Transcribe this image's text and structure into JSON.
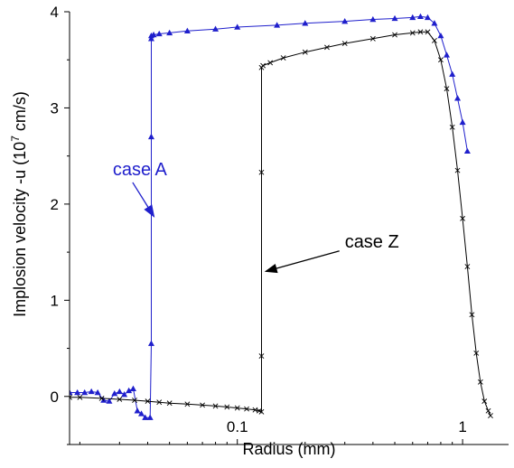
{
  "chart_data": {
    "type": "line",
    "xlabel": "Radius (mm)",
    "ylabel_main": "Implosion velocity -u (10",
    "ylabel_sup": "7",
    "ylabel_end": " cm/s)",
    "x_scale": "log",
    "xlim": [
      0.018,
      1.6
    ],
    "ylim": [
      -0.5,
      4.0
    ],
    "xticks": [
      {
        "value": 0.1,
        "label": "0.1"
      },
      {
        "value": 1,
        "label": "1"
      }
    ],
    "yticks": [
      {
        "value": 0,
        "label": "0"
      },
      {
        "value": 1,
        "label": "1"
      },
      {
        "value": 2,
        "label": "2"
      },
      {
        "value": 3,
        "label": "3"
      },
      {
        "value": 4,
        "label": "4"
      }
    ],
    "colors": {
      "case_a": "#1f1fcc",
      "case_z": "#000000"
    },
    "annotations": [
      {
        "series": "case A",
        "text": "case A",
        "text_x": 0.028,
        "text_y": 2.3,
        "arrow_to_x": 0.0415,
        "arrow_to_y": 1.87
      },
      {
        "series": "case Z",
        "text": "case Z",
        "text_x": 0.3,
        "text_y": 1.55,
        "arrow_to_x": 0.13,
        "arrow_to_y": 1.3
      }
    ],
    "series": [
      {
        "name": "case A",
        "marker": "triangle",
        "x": [
          0.018,
          0.0195,
          0.021,
          0.0225,
          0.024,
          0.0255,
          0.027,
          0.0285,
          0.03,
          0.0315,
          0.033,
          0.0345,
          0.036,
          0.0375,
          0.039,
          0.041,
          0.0415,
          0.0415,
          0.0415,
          0.0415,
          0.0425,
          0.045,
          0.05,
          0.06,
          0.08,
          0.1,
          0.15,
          0.2,
          0.3,
          0.4,
          0.5,
          0.6,
          0.65,
          0.7,
          0.75,
          0.8,
          0.85,
          0.9,
          0.95,
          1.0,
          1.05
        ],
        "y": [
          0.04,
          0.04,
          0.04,
          0.05,
          0.04,
          -0.04,
          -0.05,
          0.03,
          0.05,
          0.02,
          0.06,
          0.08,
          -0.15,
          -0.18,
          -0.22,
          -0.22,
          0.55,
          2.7,
          3.72,
          3.75,
          3.76,
          3.77,
          3.78,
          3.8,
          3.82,
          3.84,
          3.86,
          3.88,
          3.9,
          3.92,
          3.93,
          3.94,
          3.95,
          3.94,
          3.88,
          3.75,
          3.55,
          3.35,
          3.1,
          2.85,
          2.55
        ]
      },
      {
        "name": "case Z",
        "marker": "x",
        "x": [
          0.018,
          0.02,
          0.025,
          0.03,
          0.035,
          0.04,
          0.045,
          0.05,
          0.06,
          0.07,
          0.08,
          0.09,
          0.1,
          0.11,
          0.12,
          0.125,
          0.128,
          0.128,
          0.128,
          0.128,
          0.13,
          0.14,
          0.16,
          0.2,
          0.25,
          0.3,
          0.4,
          0.5,
          0.6,
          0.65,
          0.7,
          0.75,
          0.8,
          0.85,
          0.9,
          0.95,
          1.0,
          1.05,
          1.1,
          1.15,
          1.2,
          1.25,
          1.3,
          1.33
        ],
        "y": [
          -0.01,
          -0.01,
          -0.02,
          -0.03,
          -0.04,
          -0.05,
          -0.06,
          -0.07,
          -0.08,
          -0.09,
          -0.1,
          -0.11,
          -0.12,
          -0.13,
          -0.14,
          -0.15,
          -0.16,
          0.42,
          2.33,
          3.42,
          3.44,
          3.47,
          3.52,
          3.58,
          3.63,
          3.67,
          3.72,
          3.76,
          3.78,
          3.79,
          3.79,
          3.7,
          3.5,
          3.2,
          2.8,
          2.35,
          1.85,
          1.35,
          0.85,
          0.45,
          0.15,
          -0.05,
          -0.15,
          -0.2
        ]
      }
    ]
  }
}
